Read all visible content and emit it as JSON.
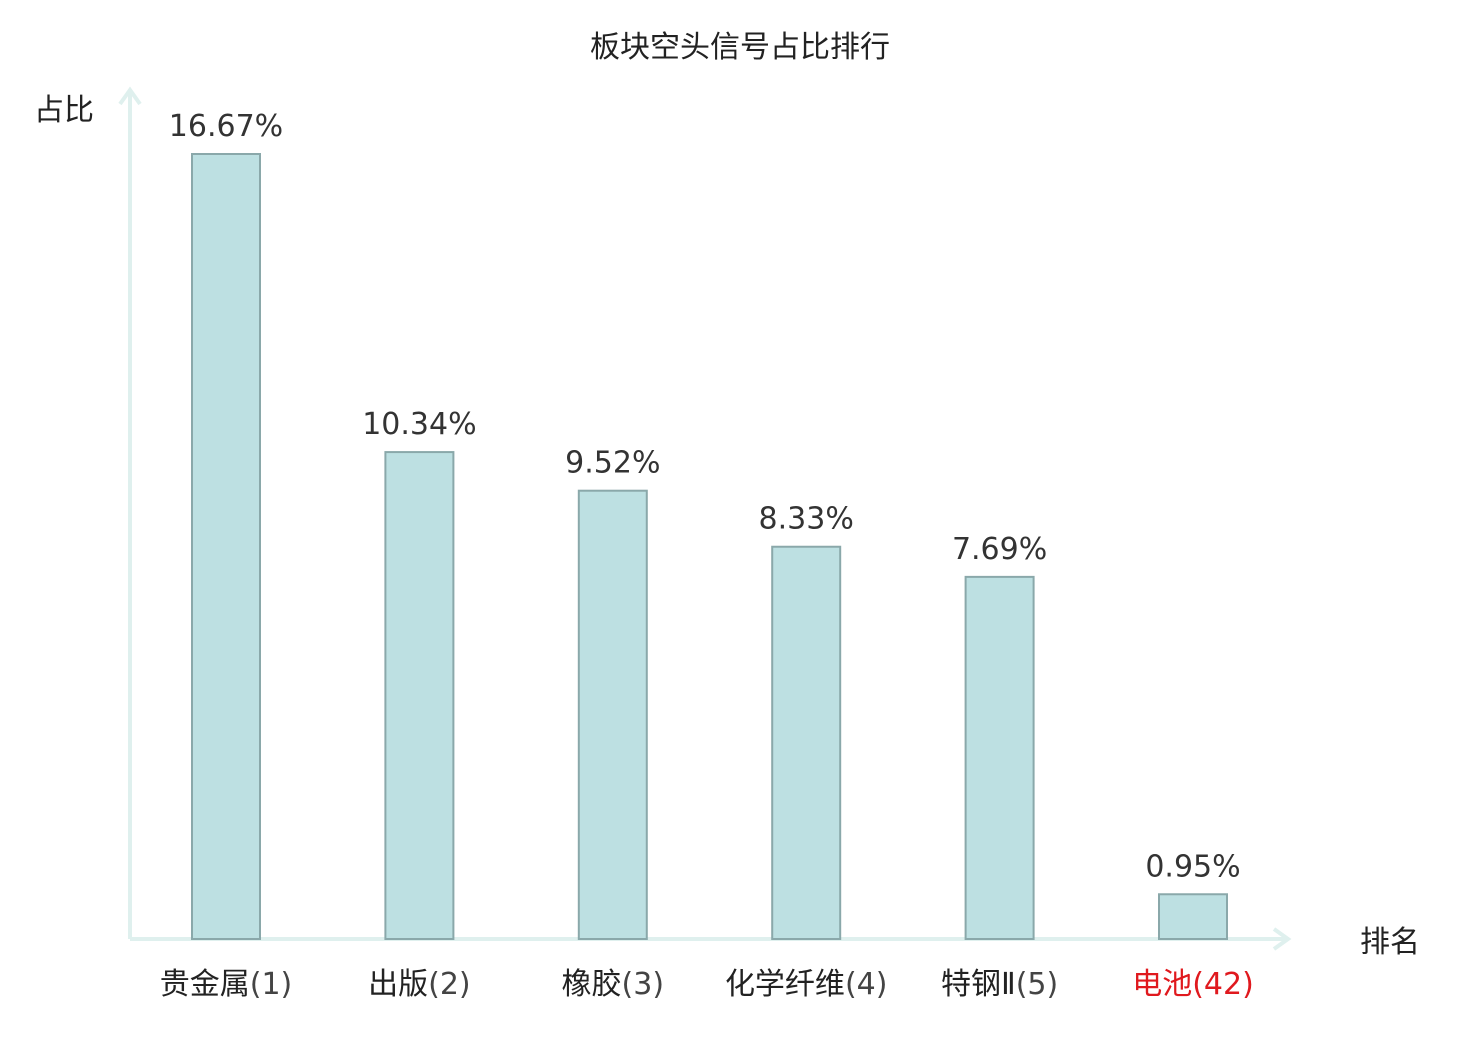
{
  "chart_data": {
    "type": "bar",
    "title": "板块空头信号占比排行",
    "ylabel": "占比",
    "xlabel": "排名",
    "categories": [
      {
        "name": "贵金属",
        "rank": "(1)",
        "highlight": false
      },
      {
        "name": "出版",
        "rank": "(2)",
        "highlight": false
      },
      {
        "name": "橡胶",
        "rank": "(3)",
        "highlight": false
      },
      {
        "name": "化学纤维",
        "rank": "(4)",
        "highlight": false
      },
      {
        "name": "特钢Ⅱ",
        "rank": "(5)",
        "highlight": false
      },
      {
        "name": "电池",
        "rank": "(42)",
        "highlight": true
      }
    ],
    "values": [
      16.67,
      10.34,
      9.52,
      8.33,
      7.69,
      0.95
    ],
    "value_labels": [
      "16.67%",
      "10.34%",
      "9.52%",
      "8.33%",
      "7.69%",
      "0.95%"
    ],
    "ylim": [
      0,
      18
    ],
    "grid": false,
    "legend": "none"
  },
  "colors": {
    "bar_fill": "#bde0e2",
    "bar_stroke": "#8aa8aa",
    "axis": "#dff0ee",
    "highlight_text": "#e0191e",
    "normal_text": "#222222",
    "rank_text": "#444444"
  }
}
